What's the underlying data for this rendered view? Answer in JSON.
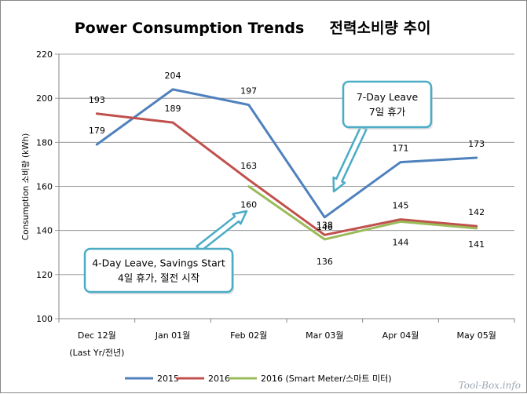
{
  "chart_data": {
    "type": "line",
    "title": "Power Consumption Trends",
    "title_ko": "전력소비량 추이",
    "ylabel": "Consumption 소비량 (kWh)",
    "xlabel": "",
    "ylim": [
      100,
      220
    ],
    "yticks": [
      100,
      120,
      140,
      160,
      180,
      200,
      220
    ],
    "ytick_labels": [
      "100",
      "120",
      "140",
      "160",
      "180",
      "200",
      "220"
    ],
    "categories": [
      "Dec 12월",
      "Jan 01월",
      "Feb 02월",
      "Mar 03월",
      "Apr 04월",
      "May 05월"
    ],
    "category_sub": [
      "(Last Yr/전년)",
      "",
      "",
      "",
      "",
      ""
    ],
    "grid": "horizontal",
    "legend_position": "bottom",
    "series": [
      {
        "name": "2015",
        "color": "#4f81bd",
        "values": [
          179,
          204,
          197,
          146,
          171,
          173
        ],
        "labels": [
          "179",
          "204",
          "197",
          "146",
          "171",
          "173"
        ]
      },
      {
        "name": "2016",
        "color": "#c0504d",
        "values": [
          193,
          189,
          163,
          138,
          145,
          142
        ],
        "labels": [
          "193",
          "189",
          "163",
          "138",
          "145",
          "142"
        ]
      },
      {
        "name": "2016 (Smart Meter/스마트 미터)",
        "color": "#9bbb59",
        "values": [
          null,
          null,
          160,
          136,
          144,
          141
        ],
        "labels": [
          "",
          "",
          "160",
          "136",
          "144",
          "141"
        ]
      }
    ],
    "annotations": [
      {
        "line1": "7-Day Leave",
        "line2": "7일 휴가"
      },
      {
        "line1": "4-Day Leave, Savings Start",
        "line2": "4일 휴가, 절전 시작"
      }
    ]
  },
  "watermark": "Tool-Box.info"
}
